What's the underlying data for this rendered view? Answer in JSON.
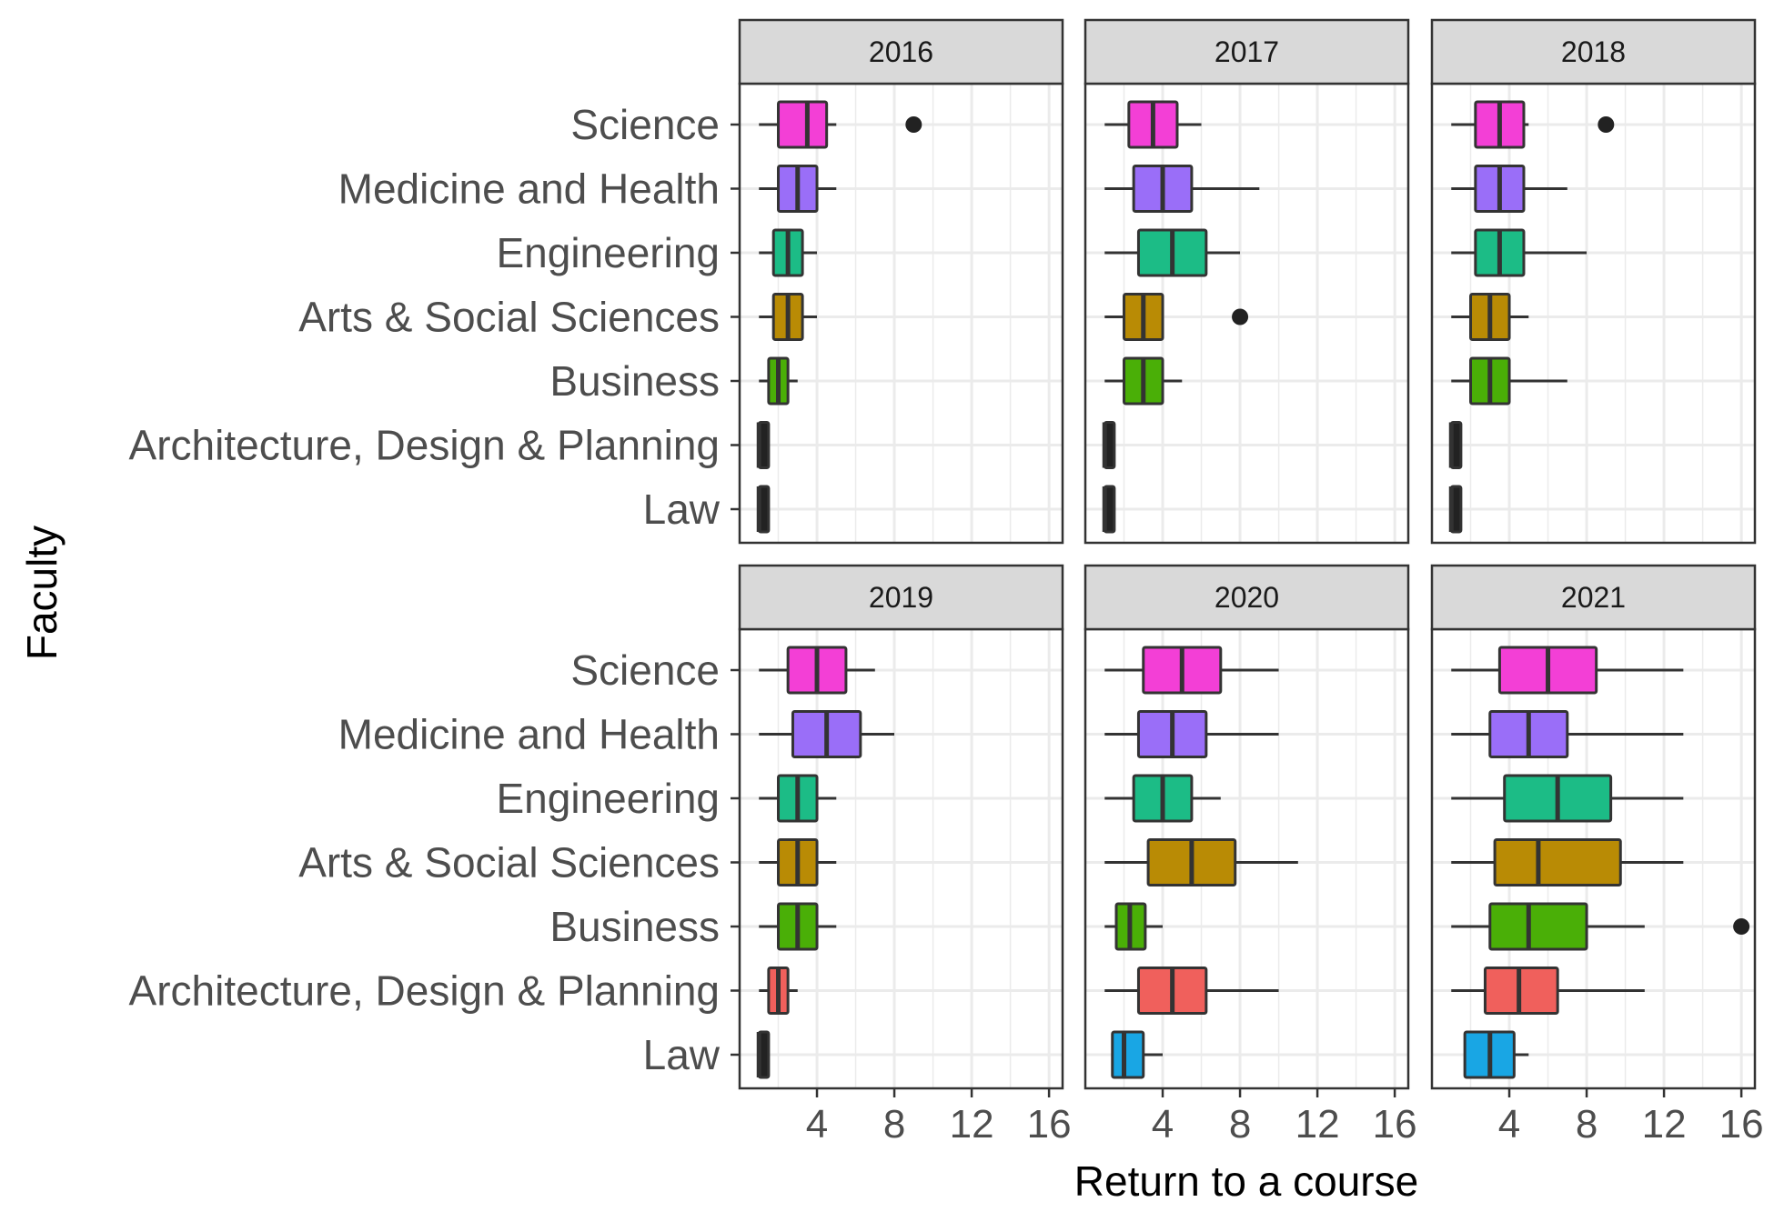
{
  "chart_data": {
    "type": "boxplot",
    "xlabel": "Return to a course",
    "ylabel": "Faculty",
    "xlim": [
      0,
      16.7
    ],
    "x_ticks": [
      4,
      8,
      12,
      16
    ],
    "grid": true,
    "facet_layout": "2 rows x 3 columns",
    "categories": [
      "Science",
      "Medicine and Health",
      "Engineering",
      "Arts & Social Sciences",
      "Business",
      "Architecture, Design & Planning",
      "Law"
    ],
    "colors": {
      "Science": "#F33FD6",
      "Medicine and Health": "#9A6EF8",
      "Engineering": "#1CBC86",
      "Arts & Social Sciences": "#B98B05",
      "Business": "#4AAF07",
      "Architecture, Design & Planning": "#F0605C",
      "Law": "#19A6E4"
    },
    "panels": [
      {
        "year": "2016",
        "boxes": [
          {
            "faculty": "Science",
            "min": 1,
            "q1": 2,
            "median": 3.5,
            "q3": 4.5,
            "max": 5,
            "outliers": [
              9
            ]
          },
          {
            "faculty": "Medicine and Health",
            "min": 1,
            "q1": 2,
            "median": 3,
            "q3": 4,
            "max": 5,
            "outliers": []
          },
          {
            "faculty": "Engineering",
            "min": 1,
            "q1": 1.75,
            "median": 2.5,
            "q3": 3.25,
            "max": 4,
            "outliers": []
          },
          {
            "faculty": "Arts & Social Sciences",
            "min": 1,
            "q1": 1.75,
            "median": 2.5,
            "q3": 3.25,
            "max": 4,
            "outliers": []
          },
          {
            "faculty": "Business",
            "min": 1,
            "q1": 1.5,
            "median": 2,
            "q3": 2.5,
            "max": 3,
            "outliers": []
          },
          {
            "faculty": "Architecture, Design & Planning",
            "min": 1,
            "q1": 1,
            "median": 1,
            "q3": 1.5,
            "max": 1.5,
            "outliers": []
          },
          {
            "faculty": "Law",
            "min": 1,
            "q1": 1,
            "median": 1,
            "q3": 1.5,
            "max": 1.5,
            "outliers": []
          }
        ]
      },
      {
        "year": "2017",
        "boxes": [
          {
            "faculty": "Science",
            "min": 1,
            "q1": 2.25,
            "median": 3.5,
            "q3": 4.75,
            "max": 6,
            "outliers": []
          },
          {
            "faculty": "Medicine and Health",
            "min": 1,
            "q1": 2.5,
            "median": 4,
            "q3": 5.5,
            "max": 9,
            "outliers": []
          },
          {
            "faculty": "Engineering",
            "min": 1,
            "q1": 2.75,
            "median": 4.5,
            "q3": 6.25,
            "max": 8,
            "outliers": []
          },
          {
            "faculty": "Arts & Social Sciences",
            "min": 1,
            "q1": 2,
            "median": 3,
            "q3": 4,
            "max": 4,
            "outliers": [
              8
            ]
          },
          {
            "faculty": "Business",
            "min": 1,
            "q1": 2,
            "median": 3,
            "q3": 4,
            "max": 5,
            "outliers": []
          },
          {
            "faculty": "Architecture, Design & Planning",
            "min": 1,
            "q1": 1,
            "median": 1,
            "q3": 1.5,
            "max": 1.5,
            "outliers": []
          },
          {
            "faculty": "Law",
            "min": 1,
            "q1": 1,
            "median": 1,
            "q3": 1.5,
            "max": 1.5,
            "outliers": []
          }
        ]
      },
      {
        "year": "2018",
        "boxes": [
          {
            "faculty": "Science",
            "min": 1,
            "q1": 2.25,
            "median": 3.5,
            "q3": 4.75,
            "max": 5,
            "outliers": [
              9
            ]
          },
          {
            "faculty": "Medicine and Health",
            "min": 1,
            "q1": 2.25,
            "median": 3.5,
            "q3": 4.75,
            "max": 7,
            "outliers": []
          },
          {
            "faculty": "Engineering",
            "min": 1,
            "q1": 2.25,
            "median": 3.5,
            "q3": 4.75,
            "max": 8,
            "outliers": []
          },
          {
            "faculty": "Arts & Social Sciences",
            "min": 1,
            "q1": 2,
            "median": 3,
            "q3": 4,
            "max": 5,
            "outliers": []
          },
          {
            "faculty": "Business",
            "min": 1,
            "q1": 2,
            "median": 3,
            "q3": 4,
            "max": 7,
            "outliers": []
          },
          {
            "faculty": "Architecture, Design & Planning",
            "min": 1,
            "q1": 1,
            "median": 1,
            "q3": 1.5,
            "max": 1.5,
            "outliers": []
          },
          {
            "faculty": "Law",
            "min": 1,
            "q1": 1,
            "median": 1,
            "q3": 1.5,
            "max": 1.5,
            "outliers": []
          }
        ]
      },
      {
        "year": "2019",
        "boxes": [
          {
            "faculty": "Science",
            "min": 1,
            "q1": 2.5,
            "median": 4,
            "q3": 5.5,
            "max": 7,
            "outliers": []
          },
          {
            "faculty": "Medicine and Health",
            "min": 1,
            "q1": 2.75,
            "median": 4.5,
            "q3": 6.25,
            "max": 8,
            "outliers": []
          },
          {
            "faculty": "Engineering",
            "min": 1,
            "q1": 2,
            "median": 3,
            "q3": 4,
            "max": 5,
            "outliers": []
          },
          {
            "faculty": "Arts & Social Sciences",
            "min": 1,
            "q1": 2,
            "median": 3,
            "q3": 4,
            "max": 5,
            "outliers": []
          },
          {
            "faculty": "Business",
            "min": 1,
            "q1": 2,
            "median": 3,
            "q3": 4,
            "max": 5,
            "outliers": []
          },
          {
            "faculty": "Architecture, Design & Planning",
            "min": 1,
            "q1": 1.5,
            "median": 2,
            "q3": 2.5,
            "max": 3,
            "outliers": []
          },
          {
            "faculty": "Law",
            "min": 1,
            "q1": 1,
            "median": 1,
            "q3": 1.5,
            "max": 1.5,
            "outliers": []
          }
        ]
      },
      {
        "year": "2020",
        "boxes": [
          {
            "faculty": "Science",
            "min": 1,
            "q1": 3,
            "median": 5,
            "q3": 7,
            "max": 10,
            "outliers": []
          },
          {
            "faculty": "Medicine and Health",
            "min": 1,
            "q1": 2.75,
            "median": 4.5,
            "q3": 6.25,
            "max": 10,
            "outliers": []
          },
          {
            "faculty": "Engineering",
            "min": 1,
            "q1": 2.5,
            "median": 4,
            "q3": 5.5,
            "max": 7,
            "outliers": []
          },
          {
            "faculty": "Arts & Social Sciences",
            "min": 1,
            "q1": 3.25,
            "median": 5.5,
            "q3": 7.75,
            "max": 11,
            "outliers": []
          },
          {
            "faculty": "Business",
            "min": 1,
            "q1": 1.6,
            "median": 2.3,
            "q3": 3.1,
            "max": 4,
            "outliers": []
          },
          {
            "faculty": "Architecture, Design & Planning",
            "min": 1,
            "q1": 2.75,
            "median": 4.5,
            "q3": 6.25,
            "max": 10,
            "outliers": []
          },
          {
            "faculty": "Law",
            "min": 1.4,
            "q1": 1.4,
            "median": 2,
            "q3": 3,
            "max": 4,
            "outliers": []
          }
        ]
      },
      {
        "year": "2021",
        "boxes": [
          {
            "faculty": "Science",
            "min": 1,
            "q1": 3.5,
            "median": 6,
            "q3": 8.5,
            "max": 13,
            "outliers": []
          },
          {
            "faculty": "Medicine and Health",
            "min": 1,
            "q1": 3,
            "median": 5,
            "q3": 7,
            "max": 13,
            "outliers": []
          },
          {
            "faculty": "Engineering",
            "min": 1,
            "q1": 3.75,
            "median": 6.5,
            "q3": 9.25,
            "max": 13,
            "outliers": []
          },
          {
            "faculty": "Arts & Social Sciences",
            "min": 1,
            "q1": 3.25,
            "median": 5.5,
            "q3": 9.75,
            "max": 13,
            "outliers": []
          },
          {
            "faculty": "Business",
            "min": 1,
            "q1": 3,
            "median": 5,
            "q3": 8,
            "max": 11,
            "outliers": [
              16
            ]
          },
          {
            "faculty": "Architecture, Design & Planning",
            "min": 1,
            "q1": 2.75,
            "median": 4.5,
            "q3": 6.5,
            "max": 11,
            "outliers": []
          },
          {
            "faculty": "Law",
            "min": 1.7,
            "q1": 1.7,
            "median": 3,
            "q3": 4.25,
            "max": 5,
            "outliers": []
          }
        ]
      }
    ]
  }
}
